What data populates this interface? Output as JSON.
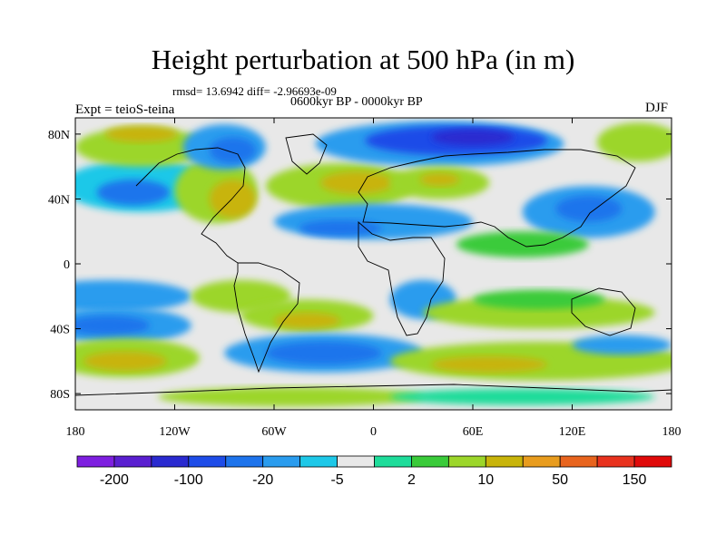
{
  "title": "Height perturbation at 500 hPa (in m)",
  "stats": "rmsd= 13.6942 diff= -2.96693e-09",
  "period": "0600kyr BP - 0000kyr BP",
  "expt": "Expt = teioS-teina",
  "season": "DJF",
  "map": {
    "lon_range": [
      -180,
      180
    ],
    "lat_range": [
      -90,
      90
    ],
    "lat_ticks": [
      {
        "value": 80,
        "label": "80N"
      },
      {
        "value": 40,
        "label": "40N"
      },
      {
        "value": 0,
        "label": "0"
      },
      {
        "value": -40,
        "label": "40S"
      },
      {
        "value": -80,
        "label": "80S"
      }
    ],
    "lon_ticks": [
      {
        "value": -180,
        "label": "180"
      },
      {
        "value": -120,
        "label": "120W"
      },
      {
        "value": -60,
        "label": "60W"
      },
      {
        "value": 0,
        "label": "0"
      },
      {
        "value": 60,
        "label": "60E"
      },
      {
        "value": 120,
        "label": "120E"
      },
      {
        "value": 180,
        "label": "180"
      }
    ],
    "background_color": "#e8e8e8"
  },
  "colorbar": {
    "colors": [
      "#7e1fe0",
      "#5a1fd0",
      "#2a2ad0",
      "#1e4ce8",
      "#1e74ec",
      "#2a9cee",
      "#1ec8e8",
      "#e8e8e8",
      "#1edc9a",
      "#3acb3a",
      "#9cd62a",
      "#c8b40a",
      "#e89c1e",
      "#e8641e",
      "#e8321e",
      "#e00a0a"
    ],
    "labels": [
      "-200",
      "-100",
      "-20",
      "-5",
      "2",
      "10",
      "50",
      "150"
    ]
  },
  "regions": [
    {
      "color": "#1ec8e8",
      "lon": -140,
      "lat": 48,
      "rlon": 48,
      "rlat": 16
    },
    {
      "color": "#1e74ec",
      "lon": -145,
      "lat": 44,
      "rlon": 22,
      "rlat": 8
    },
    {
      "color": "#9cd62a",
      "lon": -140,
      "lat": 72,
      "rlon": 40,
      "rlat": 12
    },
    {
      "color": "#c8b40a",
      "lon": -140,
      "lat": 80,
      "rlon": 22,
      "rlat": 5
    },
    {
      "color": "#9cd62a",
      "lon": -95,
      "lat": 45,
      "rlon": 25,
      "rlat": 20
    },
    {
      "color": "#c8b40a",
      "lon": -85,
      "lat": 40,
      "rlon": 14,
      "rlat": 12
    },
    {
      "color": "#2a9cee",
      "lon": -90,
      "lat": 72,
      "rlon": 25,
      "rlat": 14
    },
    {
      "color": "#1e74ec",
      "lon": -85,
      "lat": 70,
      "rlon": 14,
      "rlat": 8
    },
    {
      "color": "#9cd62a",
      "lon": -20,
      "lat": 48,
      "rlon": 45,
      "rlat": 14
    },
    {
      "color": "#c8b40a",
      "lon": -10,
      "lat": 50,
      "rlon": 22,
      "rlat": 7
    },
    {
      "color": "#2a9cee",
      "lon": 0,
      "lat": 26,
      "rlon": 60,
      "rlat": 11
    },
    {
      "color": "#1e74ec",
      "lon": -20,
      "lat": 22,
      "rlon": 25,
      "rlat": 5
    },
    {
      "color": "#2a9cee",
      "lon": 40,
      "lat": 74,
      "rlon": 75,
      "rlat": 14
    },
    {
      "color": "#1e4ce8",
      "lon": 50,
      "lat": 76,
      "rlon": 55,
      "rlat": 9
    },
    {
      "color": "#2a2ad0",
      "lon": 60,
      "lat": 78,
      "rlon": 25,
      "rlat": 5
    },
    {
      "color": "#9cd62a",
      "lon": 40,
      "lat": 50,
      "rlon": 30,
      "rlat": 10
    },
    {
      "color": "#c8b40a",
      "lon": 40,
      "lat": 52,
      "rlon": 12,
      "rlat": 4
    },
    {
      "color": "#2a9cee",
      "lon": 130,
      "lat": 32,
      "rlon": 40,
      "rlat": 16
    },
    {
      "color": "#1e74ec",
      "lon": 130,
      "lat": 34,
      "rlon": 20,
      "rlat": 8
    },
    {
      "color": "#9cd62a",
      "lon": 160,
      "lat": 75,
      "rlon": 25,
      "rlat": 12
    },
    {
      "color": "#3acb3a",
      "lon": 90,
      "lat": 12,
      "rlon": 40,
      "rlat": 8
    },
    {
      "color": "#2a9cee",
      "lon": -160,
      "lat": -20,
      "rlon": 50,
      "rlat": 10
    },
    {
      "color": "#9cd62a",
      "lon": -80,
      "lat": -20,
      "rlon": 30,
      "rlat": 10
    },
    {
      "color": "#2a9cee",
      "lon": -155,
      "lat": -38,
      "rlon": 45,
      "rlat": 11
    },
    {
      "color": "#1e74ec",
      "lon": -160,
      "lat": -38,
      "rlon": 25,
      "rlat": 6
    },
    {
      "color": "#9cd62a",
      "lon": -40,
      "lat": -32,
      "rlon": 40,
      "rlat": 10
    },
    {
      "color": "#c8b40a",
      "lon": -40,
      "lat": -35,
      "rlon": 20,
      "rlat": 5
    },
    {
      "color": "#2a9cee",
      "lon": 30,
      "lat": -22,
      "rlon": 20,
      "rlat": 12
    },
    {
      "color": "#9cd62a",
      "lon": 100,
      "lat": -30,
      "rlon": 70,
      "rlat": 10
    },
    {
      "color": "#3acb3a",
      "lon": 100,
      "lat": -22,
      "rlon": 40,
      "rlat": 6
    },
    {
      "color": "#9cd62a",
      "lon": -150,
      "lat": -58,
      "rlon": 45,
      "rlat": 12
    },
    {
      "color": "#c8b40a",
      "lon": -150,
      "lat": -60,
      "rlon": 25,
      "rlat": 6
    },
    {
      "color": "#2a9cee",
      "lon": -30,
      "lat": -55,
      "rlon": 60,
      "rlat": 12
    },
    {
      "color": "#1e74ec",
      "lon": -30,
      "lat": -55,
      "rlon": 35,
      "rlat": 7
    },
    {
      "color": "#9cd62a",
      "lon": 100,
      "lat": -60,
      "rlon": 90,
      "rlat": 12
    },
    {
      "color": "#c8b40a",
      "lon": 70,
      "lat": -62,
      "rlon": 35,
      "rlat": 5
    },
    {
      "color": "#2a9cee",
      "lon": 150,
      "lat": -50,
      "rlon": 30,
      "rlat": 6
    },
    {
      "color": "#9cd62a",
      "lon": -50,
      "lat": -82,
      "rlon": 80,
      "rlat": 6
    },
    {
      "color": "#1edc9a",
      "lon": 90,
      "lat": -82,
      "rlon": 80,
      "rlat": 5
    }
  ]
}
